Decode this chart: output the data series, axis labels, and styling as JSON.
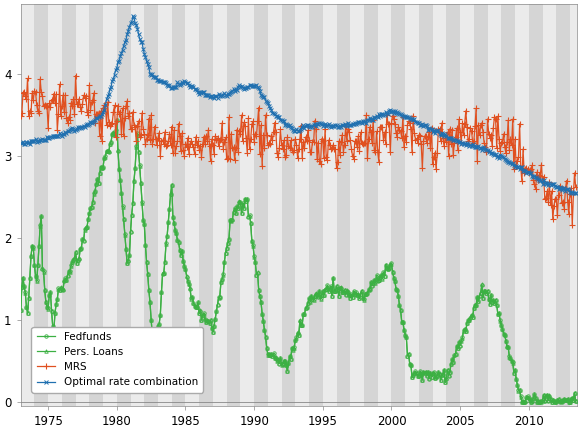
{
  "title": "",
  "ylabel": "",
  "xlabel": "",
  "ylim": [
    -0.05,
    4.85
  ],
  "xlim": [
    1973.0,
    2013.5
  ],
  "yticks": [
    0,
    1,
    2,
    3,
    4
  ],
  "xticks": [
    1975,
    1980,
    1985,
    1990,
    1995,
    2000,
    2005,
    2010
  ],
  "bg_color": "#e0e0e0",
  "stripe_colors": [
    "#ebebeb",
    "#d5d5d5"
  ],
  "colors": {
    "fedfunds": "#3cb043",
    "pers_loans": "#3cb043",
    "mrs": "#e05020",
    "optimal": "#2070b0"
  },
  "legend_labels": [
    "Fedfunds",
    "Pers. Loans",
    "MRS",
    "Optimal rate combination"
  ],
  "linewidth": 0.9,
  "marker_size": 2.5
}
